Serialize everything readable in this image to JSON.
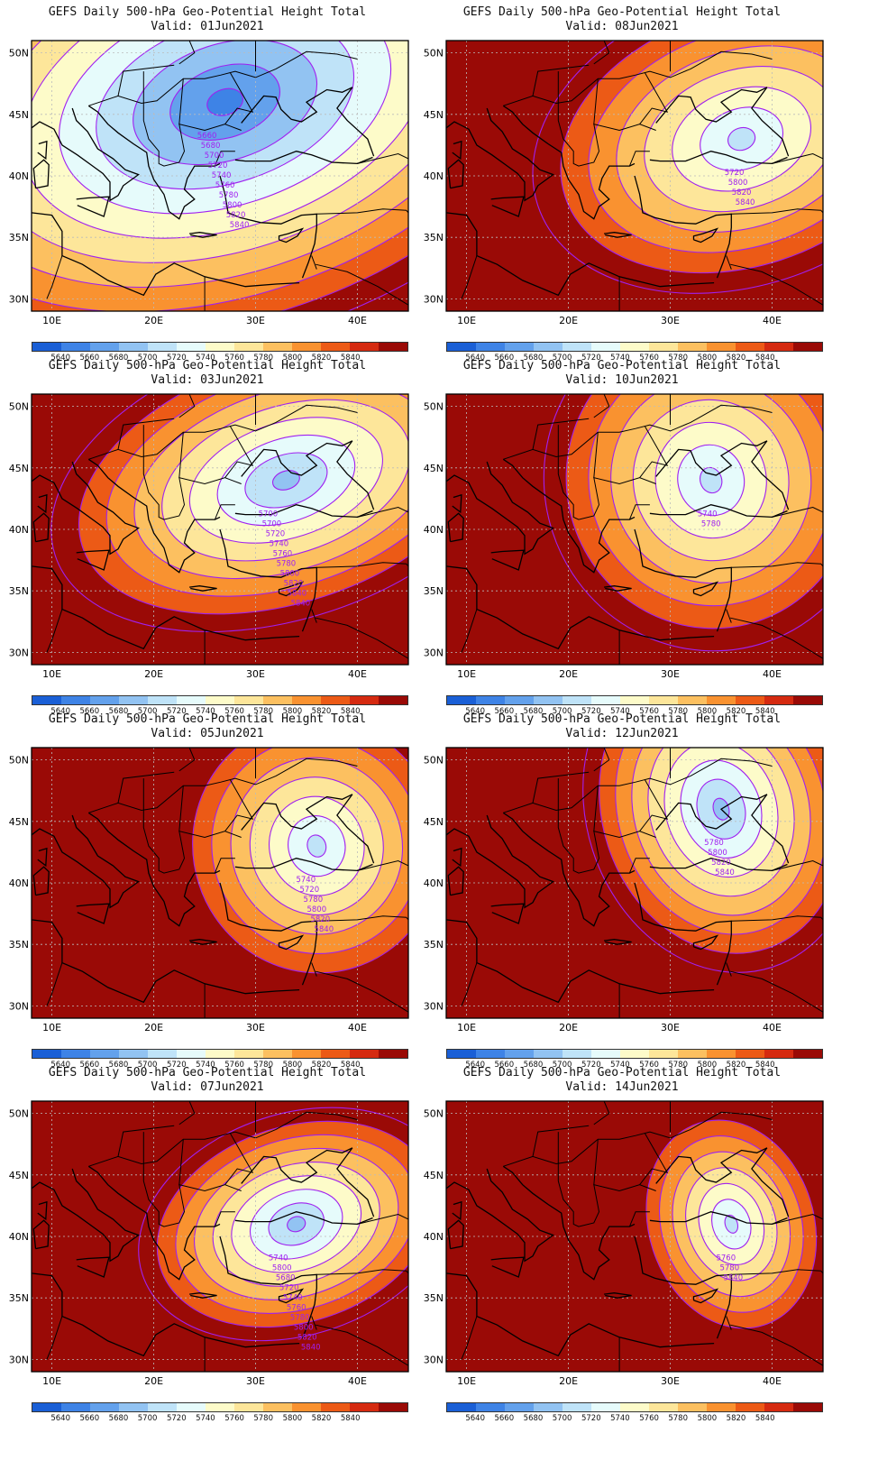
{
  "panels": [
    {
      "title": "GEFS Daily 500-hPa Geo-Potential Height Total",
      "valid": "Valid: 01Jun2021",
      "contour_labels": [
        "5660",
        "5680",
        "5700",
        "5720",
        "5740",
        "5760",
        "5780",
        "5800",
        "5820",
        "5840"
      ]
    },
    {
      "title": "GEFS Daily 500-hPa Geo-Potential Height Total",
      "valid": "Valid: 08Jun2021",
      "contour_labels": [
        "5720",
        "5800",
        "5820",
        "5840"
      ]
    },
    {
      "title": "GEFS Daily 500-hPa Geo-Potential Height Total",
      "valid": "Valid: 03Jun2021",
      "contour_labels": [
        "5700",
        "5700",
        "5720",
        "5740",
        "5760",
        "5780",
        "5800",
        "5820",
        "5840",
        "5840"
      ]
    },
    {
      "title": "GEFS Daily 500-hPa Geo-Potential Height Total",
      "valid": "Valid: 10Jun2021",
      "contour_labels": [
        "5740",
        "5780"
      ]
    },
    {
      "title": "GEFS Daily 500-hPa Geo-Potential Height Total",
      "valid": "Valid: 05Jun2021",
      "contour_labels": [
        "5740",
        "5720",
        "5780",
        "5800",
        "5820",
        "5840"
      ]
    },
    {
      "title": "GEFS Daily 500-hPa Geo-Potential Height Total",
      "valid": "Valid: 12Jun2021",
      "contour_labels": [
        "5780",
        "5800",
        "5820",
        "5840"
      ]
    },
    {
      "title": "GEFS Daily 500-hPa Geo-Potential Height Total",
      "valid": "Valid: 07Jun2021",
      "contour_labels": [
        "5740",
        "5800",
        "5680",
        "5720",
        "5740",
        "5760",
        "5780",
        "5800",
        "5820",
        "5840"
      ]
    },
    {
      "title": "GEFS Daily 500-hPa Geo-Potential Height Total",
      "valid": "Valid: 14Jun2021",
      "contour_labels": [
        "5760",
        "5780",
        "5840"
      ]
    }
  ],
  "axes": {
    "lat_labels": [
      "50N",
      "45N",
      "40N",
      "35N",
      "30N"
    ],
    "lon_labels": [
      "10E",
      "20E",
      "30E",
      "40E"
    ]
  },
  "colorbar": {
    "labels": [
      "5640",
      "5660",
      "5680",
      "5700",
      "5720",
      "5740",
      "5760",
      "5780",
      "5800",
      "5820",
      "5840"
    ],
    "colors": [
      "#1a5fd6",
      "#3e83e6",
      "#63a1ec",
      "#92c3f2",
      "#bfe3f8",
      "#e6fbfb",
      "#fdfbc9",
      "#fde69a",
      "#fcc060",
      "#f99230",
      "#ec5a16",
      "#d52a10",
      "#9a0a06"
    ]
  },
  "colors": {
    "contour": "#a020f0",
    "coast": "#000000",
    "grid": "#bbbbbb"
  }
}
